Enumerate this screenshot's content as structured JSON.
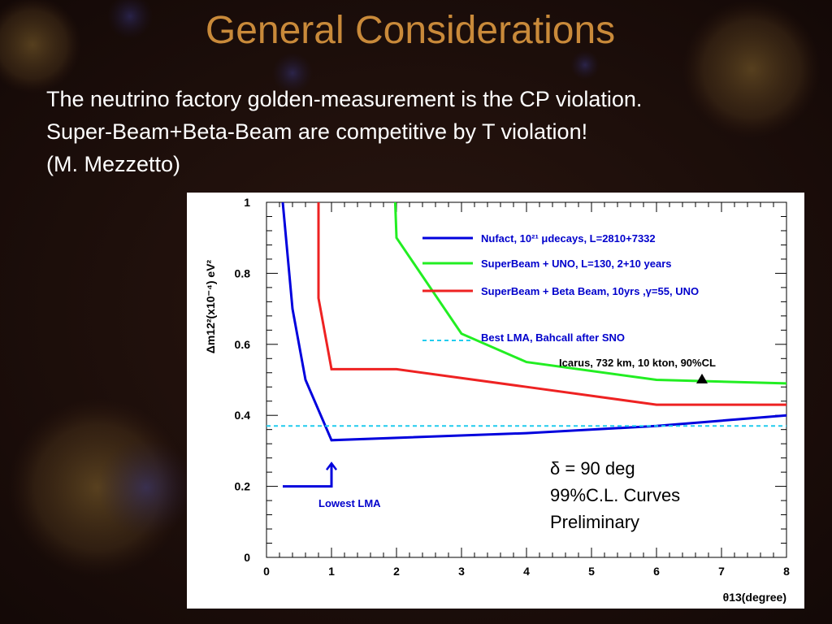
{
  "slide": {
    "title": "General Considerations",
    "lines": [
      "The neutrino factory golden-measurement is the CP violation.",
      "Super-Beam+Beta-Beam are competitive by T violation!",
      "(M. Mezzetto)"
    ]
  },
  "chart_data": {
    "type": "line",
    "xlabel": "θ13(degree)",
    "ylabel": "Δm12²(x10⁻⁴) eV²",
    "xlim": [
      0,
      8
    ],
    "ylim": [
      0,
      1
    ],
    "x_ticks": [
      "0",
      "1",
      "2",
      "3",
      "4",
      "5",
      "6",
      "7",
      "8"
    ],
    "y_ticks": [
      "0",
      "0.2",
      "0.4",
      "0.6",
      "0.8",
      "1"
    ],
    "grid": false,
    "legend_position": "top-right",
    "series": [
      {
        "name": "Nufact, 10²¹ μdecays, L=2810+7332",
        "color": "#0000dd",
        "style": "solid",
        "points": [
          [
            0.25,
            1.0
          ],
          [
            0.4,
            0.7
          ],
          [
            0.6,
            0.5
          ],
          [
            1.0,
            0.33
          ],
          [
            4.0,
            0.35
          ],
          [
            6.0,
            0.37
          ],
          [
            8.0,
            0.4
          ]
        ]
      },
      {
        "name": "SuperBeam + UNO, L=130, 2+10 years",
        "color": "#22ee22",
        "style": "solid",
        "points": [
          [
            1.98,
            1.0
          ],
          [
            2.0,
            0.9
          ],
          [
            3.0,
            0.63
          ],
          [
            4.0,
            0.55
          ],
          [
            6.0,
            0.5
          ],
          [
            8.0,
            0.49
          ]
        ]
      },
      {
        "name": "SuperBeam + Beta Beam, 10yrs ,γ=55, UNO",
        "color": "#ee2222",
        "style": "solid",
        "points": [
          [
            0.8,
            1.0
          ],
          [
            0.8,
            0.73
          ],
          [
            1.0,
            0.53
          ],
          [
            2.0,
            0.53
          ],
          [
            4.0,
            0.48
          ],
          [
            6.0,
            0.43
          ],
          [
            8.0,
            0.43
          ]
        ]
      },
      {
        "name": "Best LMA, Bahcall after SNO",
        "color": "#22ccee",
        "style": "dashed",
        "points": [
          [
            0.0,
            0.37
          ],
          [
            8.0,
            0.37
          ]
        ]
      }
    ],
    "annotations": {
      "icarus": {
        "text": "Icarus, 732 km, 10 kton, 90%CL",
        "x": 6.7,
        "y": 0.49
      },
      "lowest_lma": {
        "text": "Lowest LMA",
        "x": 1.0,
        "y": 0.2
      }
    },
    "notes": [
      "δ = 90 deg",
      "99%C.L. Curves",
      "Preliminary"
    ]
  }
}
